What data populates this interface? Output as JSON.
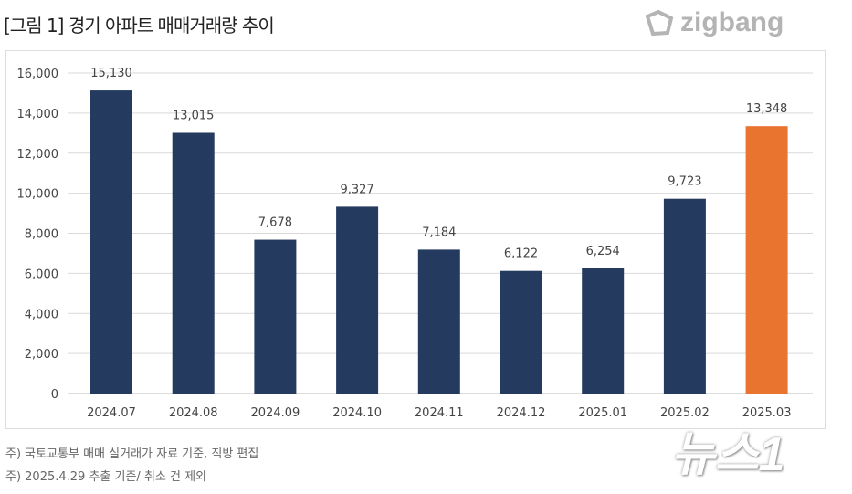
{
  "title": "[그림 1] 경기 아파트 매매거래량 추이",
  "logo": "zigbang",
  "watermark": "뉴스1",
  "notes": [
    "주) 국토교통부 매매 실거래가 자료 기준, 직방 편집",
    "주) 2025.4.29 추출 기준/ 취소 건 제외"
  ],
  "colors": {
    "bar": "#243a5e",
    "highlight": "#e9742f",
    "grid": "#d9d9d9"
  },
  "chart_data": {
    "type": "bar",
    "title": "경기 아파트 매매거래량 추이",
    "categories": [
      "2024.07",
      "2024.08",
      "2024.09",
      "2024.10",
      "2024.11",
      "2024.12",
      "2025.01",
      "2025.02",
      "2025.03"
    ],
    "values": [
      15130,
      13015,
      7678,
      9327,
      7184,
      6122,
      6254,
      9723,
      13348
    ],
    "value_labels": [
      "15,130",
      "13,015",
      "7,678",
      "9,327",
      "7,184",
      "6,122",
      "6,254",
      "9,723",
      "13,348"
    ],
    "highlight_index": 8,
    "ylim": [
      0,
      16000
    ],
    "yticks": [
      0,
      2000,
      4000,
      6000,
      8000,
      10000,
      12000,
      14000,
      16000
    ],
    "ytick_labels": [
      "0",
      "2,000",
      "4,000",
      "6,000",
      "8,000",
      "10,000",
      "12,000",
      "14,000",
      "16,000"
    ],
    "grid": true,
    "xlabel": "",
    "ylabel": ""
  }
}
